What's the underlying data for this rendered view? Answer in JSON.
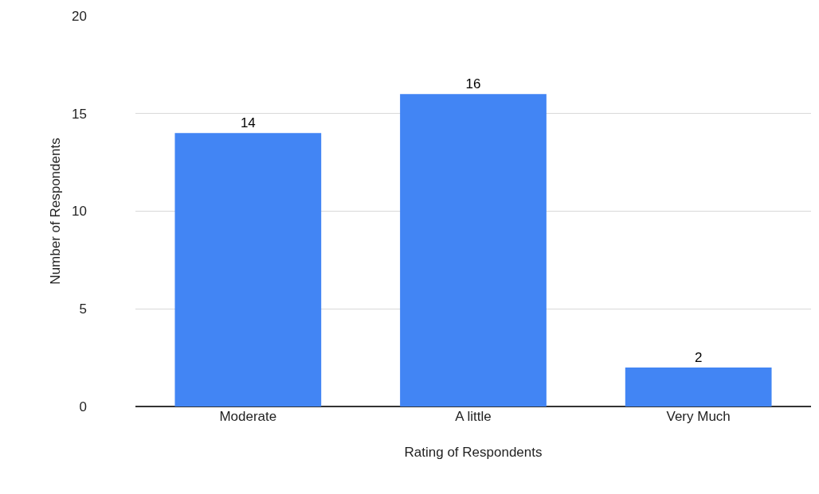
{
  "chart_data": {
    "type": "bar",
    "xlabel": "Rating of Respondents",
    "ylabel": "Number of Respondents",
    "categories": [
      "Moderate",
      "A little",
      "Very Much"
    ],
    "values": [
      14,
      16,
      2
    ],
    "color": "#4285f4",
    "data_labels": true,
    "ylim": [
      0,
      20
    ],
    "yticks": [
      0,
      5,
      10,
      15,
      20
    ],
    "grid": "y"
  }
}
